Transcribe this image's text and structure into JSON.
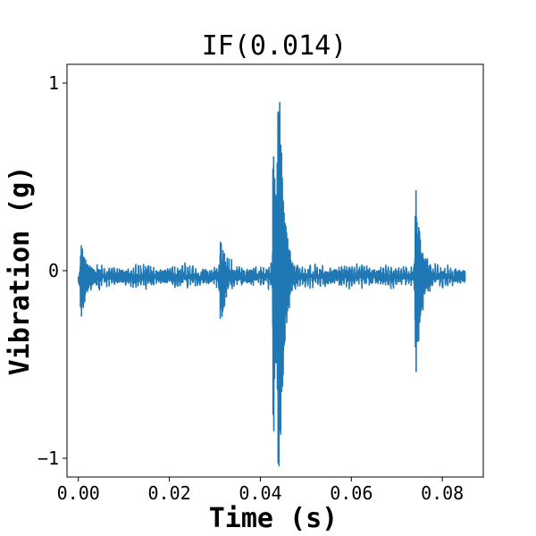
{
  "chart_data": {
    "type": "line",
    "title": "IF(0.014)",
    "xlabel": "Time (s)",
    "ylabel": "Vibration (g)",
    "xlim": [
      -0.0025,
      0.089
    ],
    "ylim": [
      -1.1,
      1.1
    ],
    "xticks": [
      0.0,
      0.02,
      0.04,
      0.06,
      0.08
    ],
    "xtick_labels": [
      "0.00",
      "0.02",
      "0.04",
      "0.06",
      "0.08"
    ],
    "yticks": [
      -1,
      0,
      1
    ],
    "ytick_labels": [
      "−1",
      "0",
      "1"
    ],
    "grid": false,
    "series": [
      {
        "color": "#1f77b4",
        "x_start": 0.0,
        "x_end": 0.085,
        "baseline": -0.03,
        "noise_amplitude": 0.06,
        "bursts": [
          {
            "x": 0.0005,
            "peak_max": 0.18,
            "peak_min": -0.25,
            "width": 0.0015
          },
          {
            "x": 0.0312,
            "peak_max": 0.23,
            "peak_min": -0.3,
            "width": 0.0012
          },
          {
            "x": 0.0428,
            "peak_max": 0.93,
            "peak_min": -1.0,
            "width": 0.0008
          },
          {
            "x": 0.0438,
            "peak_max": 1.0,
            "peak_min": -0.99,
            "width": 0.001
          },
          {
            "x": 0.0442,
            "peak_max": 0.3,
            "peak_min": -0.35,
            "width": 0.0015
          },
          {
            "x": 0.0741,
            "peak_max": 0.54,
            "peak_min": -0.62,
            "width": 0.0012
          }
        ]
      }
    ]
  }
}
